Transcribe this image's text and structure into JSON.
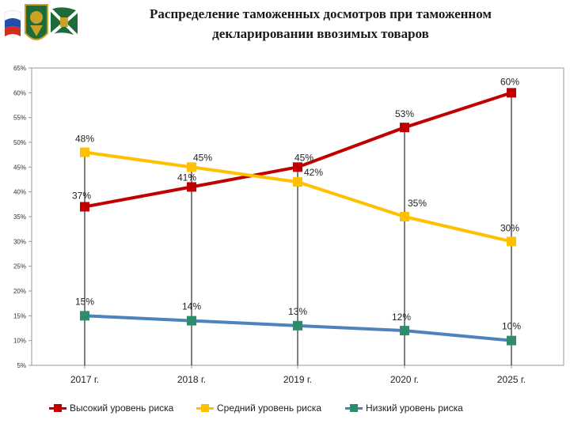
{
  "title_line1": "Распределение таможенных досмотров при таможенном",
  "title_line2": "декларировании ввозимых товаров",
  "logos": {
    "flag": "russian-flag",
    "emblem": "customs-emblem",
    "banner": "customs-flag"
  },
  "chart_data": {
    "type": "line",
    "categories": [
      "2017 г.",
      "2018 г.",
      "2019 г.",
      "2020 г.",
      "2025 г."
    ],
    "ylim": [
      5,
      65
    ],
    "yticks": [
      5,
      10,
      15,
      20,
      25,
      30,
      35,
      40,
      45,
      50,
      55,
      60,
      65
    ],
    "ytick_labels": [
      "5%",
      "10%",
      "15%",
      "20%",
      "25%",
      "30%",
      "35%",
      "40%",
      "45%",
      "50%",
      "55%",
      "60%",
      "65%"
    ],
    "series": [
      {
        "name": "Высокий уровень риска",
        "color": "#c00000",
        "values": [
          37,
          41,
          45,
          53,
          60
        ],
        "labels": [
          "37%",
          "41%",
          "45%",
          "53%",
          "60%"
        ]
      },
      {
        "name": "Средний уровень риска",
        "color": "#ffc000",
        "values": [
          48,
          45,
          42,
          35,
          30
        ],
        "labels": [
          "48%",
          "45%",
          "42%",
          "35%",
          "30%"
        ]
      },
      {
        "name": "Низкий уровень риска",
        "color": "#4f81bd",
        "marker_color": "#2e8b6e",
        "values": [
          15,
          14,
          13,
          12,
          10
        ],
        "labels": [
          "15%",
          "14%",
          "13%",
          "12%",
          "10%"
        ]
      }
    ],
    "legend_position": "bottom"
  }
}
